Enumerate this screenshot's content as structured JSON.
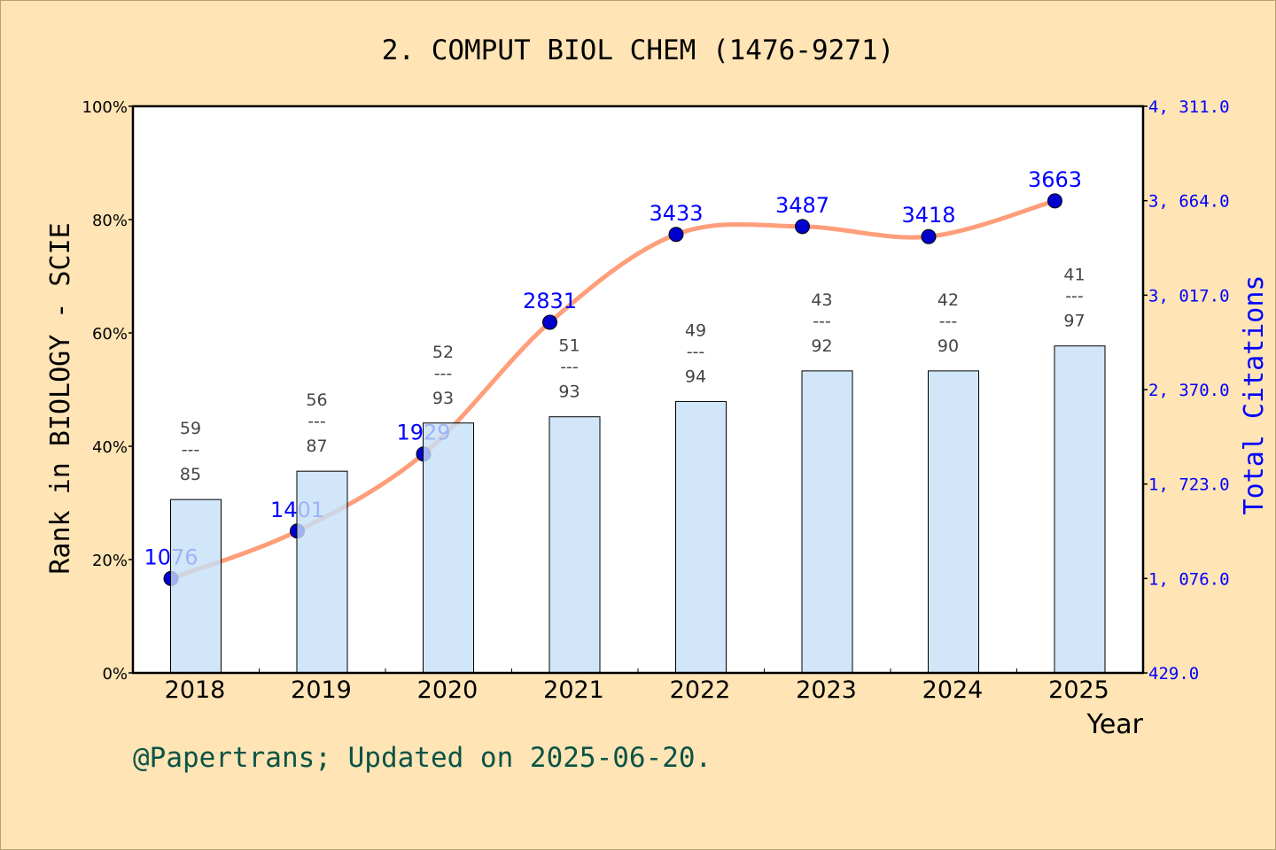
{
  "chart_data": {
    "type": "bar+line",
    "title": "2. COMPUT BIOL CHEM (1476-9271)",
    "xlabel": "Year",
    "ylabel_left": "Rank in BIOLOGY - SCIE",
    "ylabel_right": "Total Citations",
    "categories": [
      "2018",
      "2019",
      "2020",
      "2021",
      "2022",
      "2023",
      "2024",
      "2025"
    ],
    "bars": {
      "rank": [
        59,
        56,
        52,
        51,
        49,
        43,
        42,
        41
      ],
      "total": [
        85,
        87,
        93,
        93,
        94,
        92,
        90,
        97
      ],
      "percent": [
        30.6,
        35.6,
        44.1,
        45.2,
        47.9,
        53.3,
        53.3,
        57.7
      ],
      "color": "#c5e0f7"
    },
    "line": {
      "values": [
        1076,
        1401,
        1929,
        2831,
        3433,
        3487,
        3418,
        3663
      ],
      "line_color": "#ff9e7a",
      "marker_color": "#0000cd",
      "label_color": "#0000ff"
    },
    "left_axis": {
      "ylim": [
        0,
        100
      ],
      "ticks": [
        "0%",
        "20%",
        "40%",
        "60%",
        "80%",
        "100%"
      ]
    },
    "right_axis": {
      "ylim": [
        429,
        4311
      ],
      "ticks": [
        "429.0",
        "1, 076.0",
        "1, 723.0",
        "2, 370.0",
        "3, 017.0",
        "3, 664.0",
        "4, 311.0"
      ],
      "color": "#0000ff"
    },
    "grid": false
  },
  "footer": "@Papertrans; Updated on 2025-06-20.",
  "colors": {
    "background": "#ffe4b5",
    "footer": "#0b5345"
  }
}
